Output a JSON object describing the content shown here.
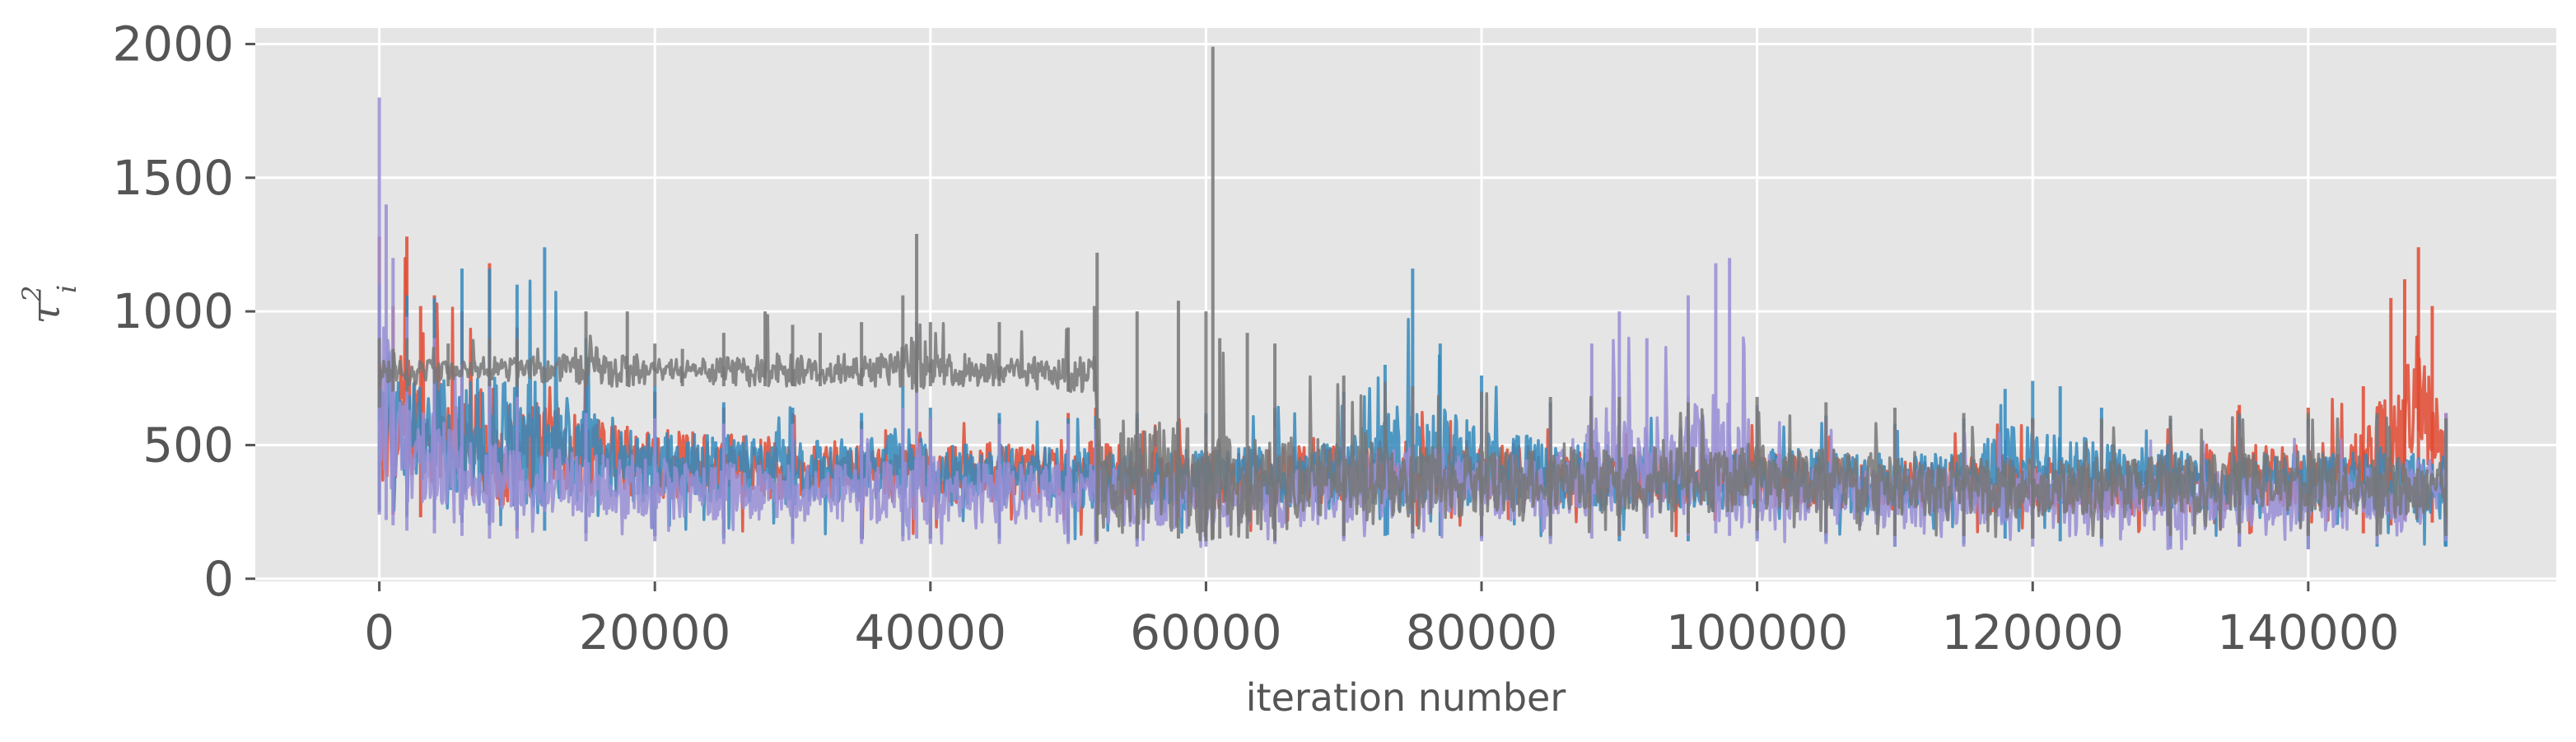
{
  "chart_data": {
    "type": "line",
    "title": "",
    "xlabel": "iteration number",
    "ylabel": "τ",
    "ylabel_superscript": "2",
    "ylabel_subscript": "i",
    "xlim": [
      -9000,
      158000
    ],
    "ylim": [
      -10,
      2060
    ],
    "x_ticks": [
      0,
      20000,
      40000,
      60000,
      80000,
      100000,
      120000,
      140000
    ],
    "x_tick_labels": [
      "0",
      "20000",
      "40000",
      "60000",
      "80000",
      "100000",
      "120000",
      "140000"
    ],
    "y_ticks": [
      0,
      500,
      1000,
      1500,
      2000
    ],
    "y_tick_labels": [
      "0",
      "500",
      "1000",
      "1500",
      "2000"
    ],
    "grid": true,
    "background": "#e5e5e5",
    "series": [
      {
        "color": "#e24a33",
        "x": [
          0,
          1000,
          2000,
          3000,
          4000,
          6000,
          8000,
          10000,
          15000,
          20000,
          25000,
          30000,
          35000,
          40000,
          45000,
          50000,
          52000,
          55000,
          60000,
          65000,
          70000,
          75000,
          80000,
          85000,
          90000,
          95000,
          100000,
          105000,
          110000,
          115000,
          120000,
          125000,
          130000,
          135000,
          140000,
          144000,
          146000,
          147000,
          148000,
          149000,
          150000
        ],
        "y": [
          620,
          560,
          640,
          580,
          560,
          520,
          500,
          490,
          460,
          430,
          430,
          410,
          400,
          390,
          400,
          410,
          400,
          380,
          370,
          380,
          390,
          420,
          400,
          380,
          370,
          360,
          380,
          360,
          350,
          350,
          350,
          340,
          350,
          380,
          390,
          420,
          520,
          600,
          680,
          580,
          400
        ],
        "upper": [
          1280,
          1020,
          1280,
          1020,
          1060,
          1000,
          1180,
          940,
          760,
          700,
          640,
          620,
          590,
          600,
          600,
          620,
          640,
          600,
          610,
          620,
          640,
          650,
          620,
          600,
          580,
          590,
          600,
          580,
          570,
          580,
          600,
          560,
          580,
          650,
          640,
          720,
          1050,
          1120,
          1240,
          1020,
          620
        ],
        "lower": [
          260,
          240,
          240,
          230,
          220,
          210,
          200,
          180,
          170,
          160,
          170,
          160,
          150,
          150,
          160,
          170,
          160,
          170,
          160,
          170,
          170,
          180,
          170,
          160,
          160,
          160,
          170,
          160,
          150,
          160,
          160,
          150,
          150,
          160,
          170,
          170,
          200,
          220,
          230,
          210,
          200
        ]
      },
      {
        "color": "#348abd",
        "x": [
          0,
          2000,
          4000,
          6000,
          8000,
          10000,
          12000,
          15000,
          20000,
          25000,
          30000,
          35000,
          38000,
          40000,
          45000,
          50000,
          52000,
          55000,
          60000,
          65000,
          70000,
          73000,
          75000,
          77000,
          80000,
          85000,
          90000,
          95000,
          100000,
          105000,
          110000,
          115000,
          118000,
          120000,
          122000,
          125000,
          130000,
          135000,
          140000,
          145000,
          150000
        ],
        "y": [
          560,
          520,
          540,
          500,
          520,
          500,
          480,
          440,
          420,
          410,
          400,
          410,
          440,
          400,
          390,
          380,
          380,
          370,
          360,
          380,
          400,
          450,
          480,
          460,
          420,
          390,
          380,
          370,
          380,
          360,
          350,
          360,
          420,
          440,
          410,
          380,
          360,
          360,
          350,
          350,
          340
        ],
        "upper": [
          1100,
          1060,
          1050,
          1160,
          1160,
          1100,
          1240,
          900,
          720,
          660,
          640,
          620,
          720,
          640,
          620,
          600,
          610,
          620,
          620,
          640,
          700,
          800,
          1160,
          880,
          760,
          660,
          640,
          610,
          640,
          610,
          580,
          600,
          710,
          740,
          720,
          640,
          600,
          610,
          600,
          610,
          600
        ],
        "lower": [
          250,
          230,
          220,
          210,
          200,
          190,
          180,
          170,
          160,
          150,
          150,
          150,
          160,
          150,
          150,
          140,
          150,
          140,
          140,
          150,
          150,
          160,
          170,
          160,
          150,
          150,
          140,
          140,
          150,
          140,
          120,
          130,
          150,
          150,
          140,
          130,
          120,
          120,
          110,
          120,
          120
        ]
      },
      {
        "color": "#988ed5",
        "x": [
          0,
          500,
          1000,
          2000,
          4000,
          6000,
          8000,
          10000,
          15000,
          20000,
          25000,
          30000,
          35000,
          38000,
          39000,
          40000,
          45000,
          50000,
          52000,
          55000,
          60000,
          65000,
          70000,
          75000,
          80000,
          85000,
          88000,
          90000,
          92000,
          95000,
          97000,
          98000,
          100000,
          105000,
          110000,
          115000,
          120000,
          125000,
          130000,
          135000,
          140000,
          145000,
          150000
        ],
        "y": [
          620,
          700,
          560,
          480,
          440,
          400,
          380,
          370,
          350,
          340,
          330,
          320,
          320,
          330,
          360,
          320,
          320,
          320,
          320,
          300,
          290,
          300,
          330,
          370,
          350,
          330,
          420,
          460,
          440,
          460,
          480,
          400,
          340,
          320,
          300,
          300,
          300,
          300,
          290,
          300,
          290,
          310,
          330
        ],
        "upper": [
          1800,
          1400,
          1200,
          980,
          900,
          800,
          720,
          680,
          620,
          600,
          580,
          580,
          560,
          640,
          960,
          600,
          580,
          580,
          560,
          540,
          540,
          560,
          660,
          680,
          640,
          620,
          880,
          1000,
          900,
          1060,
          1180,
          1200,
          650,
          600,
          560,
          560,
          570,
          560,
          560,
          560,
          570,
          600,
          620
        ],
        "lower": [
          240,
          220,
          200,
          180,
          170,
          160,
          150,
          150,
          140,
          140,
          130,
          130,
          130,
          140,
          150,
          130,
          130,
          130,
          130,
          120,
          120,
          130,
          140,
          150,
          140,
          130,
          150,
          160,
          150,
          160,
          170,
          160,
          140,
          130,
          120,
          120,
          120,
          120,
          110,
          120,
          110,
          130,
          140
        ]
      },
      {
        "color": "#777777",
        "x": [
          0,
          1000,
          2000,
          5000,
          8000,
          10000,
          15000,
          18000,
          20000,
          22000,
          25000,
          28000,
          30000,
          32000,
          35000,
          38000,
          39000,
          40000,
          45000,
          50000,
          51900,
          52100,
          55000,
          58000,
          60000,
          60500,
          61000,
          63000,
          65000,
          70000,
          75000,
          80000,
          85000,
          90000,
          95000,
          100000,
          105000,
          110000,
          115000,
          120000,
          125000,
          130000,
          135000,
          140000,
          145000,
          150000
        ],
        "y": [
          760,
          780,
          770,
          780,
          790,
          780,
          800,
          780,
          780,
          790,
          780,
          780,
          780,
          790,
          780,
          780,
          840,
          780,
          780,
          760,
          760,
          380,
          380,
          370,
          360,
          380,
          380,
          370,
          360,
          360,
          370,
          360,
          360,
          360,
          370,
          380,
          370,
          360,
          350,
          340,
          340,
          350,
          370,
          360,
          340,
          330
        ],
        "upper": [
          900,
          860,
          900,
          880,
          900,
          900,
          1000,
          1000,
          880,
          860,
          920,
          1000,
          950,
          920,
          960,
          1060,
          1290,
          960,
          960,
          940,
          1020,
          1220,
          1000,
          1040,
          1000,
          1990,
          900,
          920,
          880,
          760,
          720,
          700,
          680,
          680,
          660,
          680,
          660,
          640,
          620,
          600,
          600,
          610,
          620,
          620,
          620,
          600
        ],
        "lower": [
          640,
          700,
          700,
          720,
          720,
          720,
          720,
          720,
          720,
          720,
          720,
          720,
          720,
          720,
          720,
          720,
          700,
          720,
          720,
          700,
          700,
          140,
          150,
          150,
          140,
          150,
          150,
          150,
          140,
          160,
          170,
          160,
          160,
          160,
          170,
          180,
          170,
          160,
          160,
          150,
          150,
          160,
          170,
          160,
          160,
          160
        ]
      }
    ]
  }
}
